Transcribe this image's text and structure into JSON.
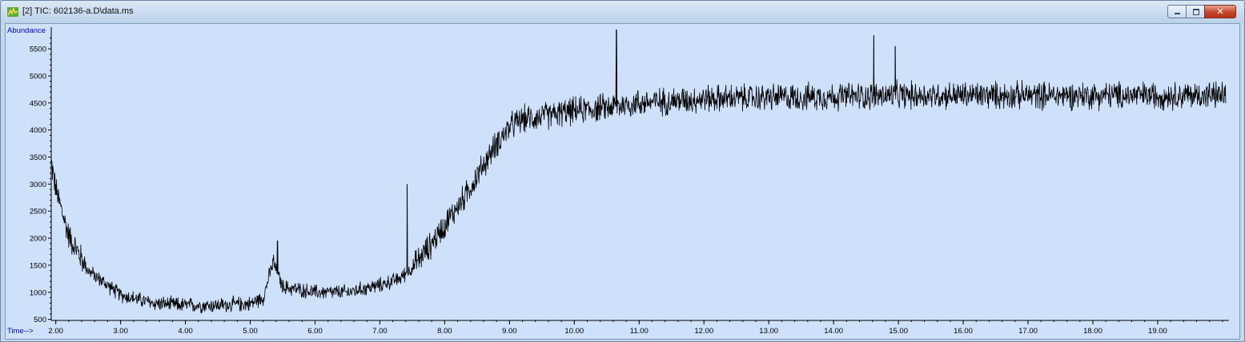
{
  "window": {
    "title": "[2] TIC: 602136-a.D\\data.ms",
    "icon": "chromatogram-app-icon",
    "buttons": {
      "minimize": "minimize-icon",
      "maximize": "maximize-icon",
      "close": "close-icon"
    }
  },
  "colors": {
    "plot_background": "#cee0fa",
    "trace": "#000000",
    "axis_label": "#0000cc"
  },
  "chart_data": {
    "type": "line",
    "title": "",
    "ylabel": "Abundance",
    "xlabel": "Time-->",
    "xlim": [
      1.93,
      20.1
    ],
    "ylim": [
      480,
      5900
    ],
    "x_ticks": [
      "2.00",
      "3.00",
      "4.00",
      "5.00",
      "6.00",
      "7.00",
      "8.00",
      "9.00",
      "10.00",
      "11.00",
      "12.00",
      "13.00",
      "14.00",
      "15.00",
      "16.00",
      "17.00",
      "18.00",
      "19.00"
    ],
    "y_ticks": [
      "500",
      "1000",
      "1500",
      "2000",
      "2500",
      "3000",
      "3500",
      "4000",
      "4500",
      "5000",
      "5500"
    ],
    "baseline": {
      "x": [
        1.93,
        2.0,
        2.2,
        2.5,
        3.0,
        3.5,
        4.0,
        4.5,
        5.0,
        5.2,
        5.35,
        5.5,
        6.0,
        6.5,
        7.0,
        7.3,
        7.5,
        7.8,
        8.0,
        8.3,
        8.6,
        8.8,
        9.0,
        9.2,
        9.5,
        10.0,
        10.5,
        11.0,
        12.0,
        13.0,
        14.0,
        15.0,
        16.0,
        17.0,
        18.0,
        19.0,
        20.05
      ],
      "y": [
        3400,
        2900,
        2050,
        1400,
        950,
        800,
        760,
        760,
        790,
        900,
        1550,
        1100,
        1000,
        1000,
        1130,
        1250,
        1450,
        1900,
        2250,
        2750,
        3350,
        3750,
        4050,
        4200,
        4250,
        4350,
        4420,
        4500,
        4580,
        4600,
        4620,
        4640,
        4640,
        4640,
        4640,
        4640,
        4640
      ]
    },
    "spikes": [
      {
        "x": 5.42,
        "y": 1950
      },
      {
        "x": 7.42,
        "y": 3000
      },
      {
        "x": 10.65,
        "y": 5850
      },
      {
        "x": 14.62,
        "y": 5750
      },
      {
        "x": 14.95,
        "y": 5550
      }
    ],
    "noise_amplitude": 260,
    "grid": false,
    "legend": "none"
  }
}
